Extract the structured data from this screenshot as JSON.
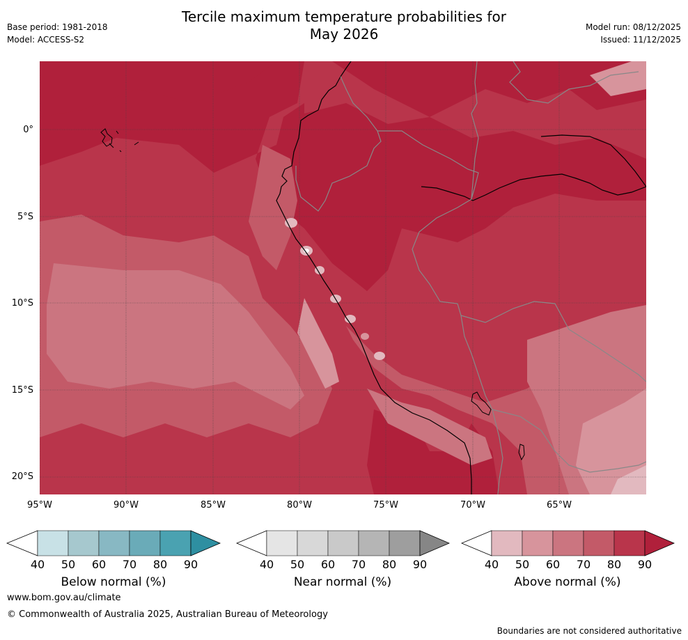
{
  "header": {
    "title_line1": "Tercile maximum temperature probabilities for",
    "title_line2": "May 2026",
    "base_period": "Base period: 1981-2018",
    "model": "Model: ACCESS-S2",
    "model_run": "Model run: 08/12/2025",
    "issued": "Issued: 11/12/2025"
  },
  "map": {
    "lat_labels": [
      "0°",
      "5°S",
      "10°S",
      "15°S",
      "20°S"
    ],
    "lon_labels": [
      "95°W",
      "90°W",
      "85°W",
      "80°W",
      "75°W",
      "70°W",
      "65°W"
    ]
  },
  "colorbars": [
    {
      "title": "Below normal (%)",
      "ticks": [
        "40",
        "50",
        "60",
        "70",
        "80",
        "90"
      ],
      "colors": [
        "#c8e1e6",
        "#a6c8ce",
        "#88b8c3",
        "#6aabb8",
        "#4aa2b1",
        "#2e8fa1"
      ]
    },
    {
      "title": "Near normal (%)",
      "ticks": [
        "40",
        "50",
        "60",
        "70",
        "80",
        "90"
      ],
      "colors": [
        "#e5e5e5",
        "#d8d8d8",
        "#c9c9c9",
        "#b5b5b5",
        "#9e9e9e",
        "#868686"
      ]
    },
    {
      "title": "Above normal (%)",
      "ticks": [
        "40",
        "50",
        "60",
        "70",
        "80",
        "90"
      ],
      "colors": [
        "#e2b9bf",
        "#d7949c",
        "#cb7580",
        "#c35a68",
        "#b9354b",
        "#b0203b"
      ]
    }
  ],
  "footer": {
    "link": "www.bom.gov.au/climate",
    "copyright": "© Commonwealth of Australia 2025, Australian Bureau of Meteorology",
    "note": "Boundaries are not considered authoritative"
  }
}
